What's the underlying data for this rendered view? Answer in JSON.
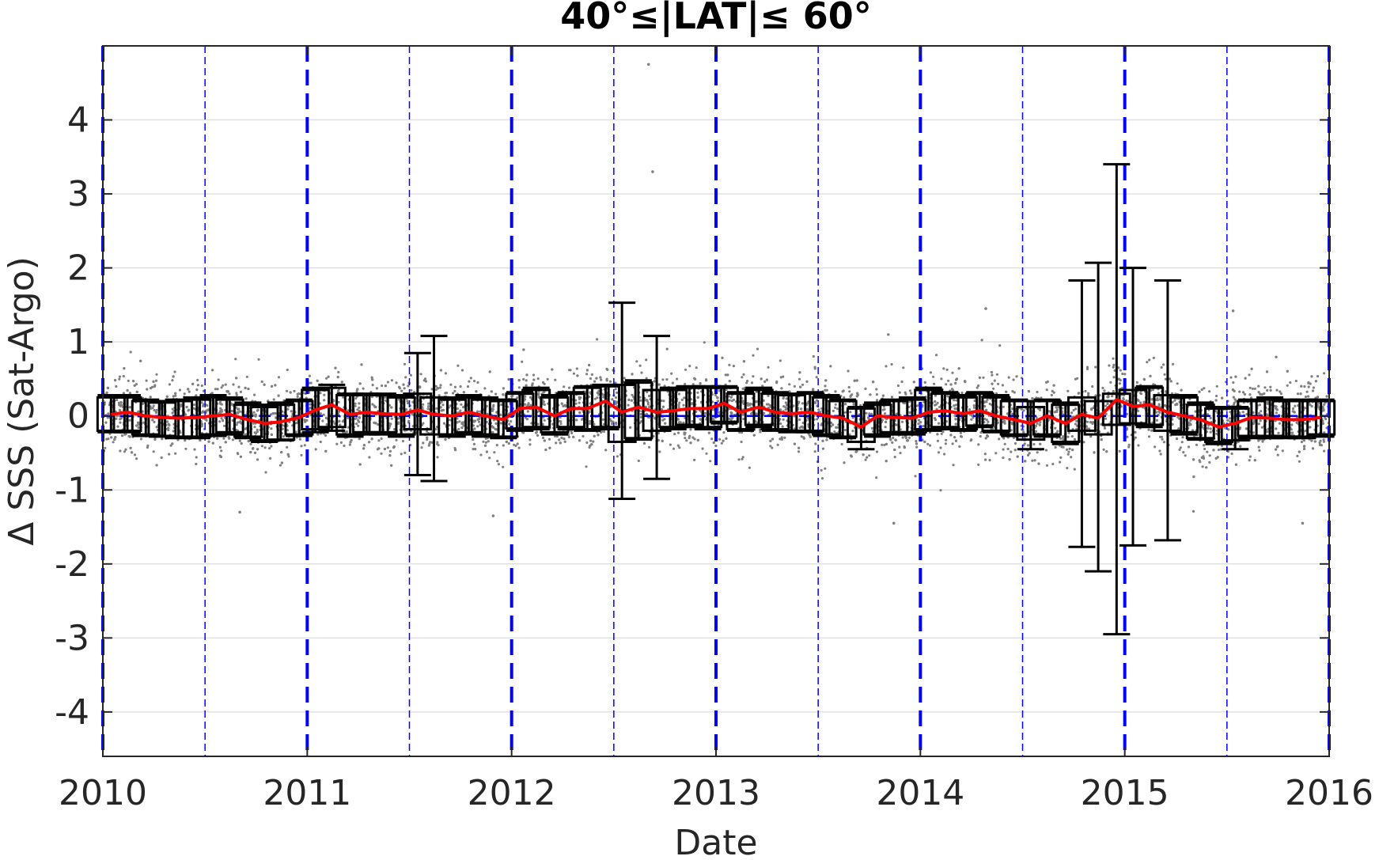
{
  "chart_data": {
    "type": "box",
    "title": "40°≤|LAT|≤ 60°",
    "xlabel": "Date",
    "ylabel": "Δ SSS (Sat-Argo)",
    "xlim": [
      2010.0,
      2016.0
    ],
    "ylim": [
      -4.6,
      5.0
    ],
    "x_ticks": [
      2010,
      2011,
      2012,
      2013,
      2014,
      2015,
      2016
    ],
    "x_tick_labels": [
      "2010",
      "2011",
      "2012",
      "2013",
      "2014",
      "2015",
      "2016"
    ],
    "y_ticks": [
      -4,
      -3,
      -2,
      -1,
      0,
      1,
      2,
      3,
      4
    ],
    "y_tick_labels": [
      "-4",
      "-3",
      "-2",
      "-1",
      "0",
      "1",
      "2",
      "3",
      "4"
    ],
    "grid": "horizontal",
    "year_lines": [
      2010,
      2011,
      2012,
      2013,
      2014,
      2015,
      2016
    ],
    "half_year_lines": [
      2010.5,
      2011.5,
      2012.5,
      2013.5,
      2014.5,
      2015.5
    ],
    "scatter": {
      "description": "individual satellite-minus-Argo differences",
      "color": "#808080",
      "spread_sd": 0.25,
      "outliers": [
        {
          "x": 2012.67,
          "y": 4.75
        },
        {
          "x": 2012.69,
          "y": 3.3
        },
        {
          "x": 2014.32,
          "y": 1.45
        },
        {
          "x": 2015.53,
          "y": 1.42
        },
        {
          "x": 2010.67,
          "y": -1.3
        },
        {
          "x": 2011.91,
          "y": -1.35
        },
        {
          "x": 2013.87,
          "y": -1.45
        },
        {
          "x": 2015.87,
          "y": -1.45
        }
      ]
    },
    "boxes": {
      "x": [
        2010.04,
        2010.12,
        2010.21,
        2010.29,
        2010.37,
        2010.46,
        2010.54,
        2010.62,
        2010.71,
        2010.79,
        2010.87,
        2010.96,
        2011.04,
        2011.12,
        2011.21,
        2011.29,
        2011.37,
        2011.46,
        2011.54,
        2011.62,
        2011.71,
        2011.79,
        2011.87,
        2011.96,
        2012.04,
        2012.12,
        2012.21,
        2012.29,
        2012.37,
        2012.46,
        2012.54,
        2012.62,
        2012.71,
        2012.79,
        2012.87,
        2012.96,
        2013.04,
        2013.12,
        2013.21,
        2013.29,
        2013.37,
        2013.46,
        2013.54,
        2013.62,
        2013.71,
        2013.79,
        2013.87,
        2013.96,
        2014.04,
        2014.12,
        2014.21,
        2014.29,
        2014.37,
        2014.46,
        2014.54,
        2014.62,
        2014.71,
        2014.79,
        2014.87,
        2014.96,
        2015.04,
        2015.12,
        2015.21,
        2015.29,
        2015.37,
        2015.46,
        2015.54,
        2015.62,
        2015.71,
        2015.79,
        2015.87,
        2015.96
      ],
      "median": [
        0.02,
        0.05,
        0.0,
        -0.02,
        -0.03,
        -0.02,
        0.0,
        0.02,
        -0.05,
        -0.1,
        -0.08,
        -0.02,
        0.08,
        0.15,
        0.02,
        0.05,
        0.03,
        0.02,
        0.08,
        0.02,
        0.0,
        0.05,
        0.0,
        -0.05,
        0.1,
        0.12,
        0.0,
        0.1,
        0.1,
        0.2,
        0.05,
        0.12,
        0.05,
        0.07,
        0.1,
        0.1,
        0.17,
        0.05,
        0.12,
        0.05,
        0.03,
        0.05,
        0.0,
        -0.03,
        -0.15,
        0.0,
        -0.02,
        -0.03,
        0.05,
        0.07,
        0.03,
        0.07,
        0.0,
        -0.05,
        -0.1,
        0.0,
        -0.1,
        0.02,
        -0.03,
        0.22,
        0.13,
        0.15,
        0.05,
        0.0,
        -0.05,
        -0.15,
        -0.1,
        -0.02,
        -0.03,
        -0.05,
        -0.05,
        -0.02
      ],
      "q1": [
        -0.2,
        -0.2,
        -0.25,
        -0.27,
        -0.28,
        -0.28,
        -0.25,
        -0.22,
        -0.28,
        -0.33,
        -0.32,
        -0.25,
        -0.18,
        -0.15,
        -0.25,
        -0.22,
        -0.22,
        -0.25,
        -0.18,
        -0.25,
        -0.25,
        -0.22,
        -0.25,
        -0.28,
        -0.17,
        -0.15,
        -0.22,
        -0.15,
        -0.18,
        -0.15,
        -0.35,
        -0.3,
        -0.2,
        -0.15,
        -0.12,
        -0.15,
        -0.08,
        -0.18,
        -0.12,
        -0.18,
        -0.2,
        -0.2,
        -0.25,
        -0.28,
        -0.35,
        -0.25,
        -0.22,
        -0.22,
        -0.18,
        -0.15,
        -0.18,
        -0.13,
        -0.2,
        -0.25,
        -0.32,
        -0.25,
        -0.35,
        -0.2,
        -0.25,
        -0.12,
        -0.1,
        -0.12,
        -0.2,
        -0.22,
        -0.3,
        -0.35,
        -0.33,
        -0.27,
        -0.27,
        -0.28,
        -0.28,
        -0.25
      ],
      "q3": [
        0.25,
        0.25,
        0.2,
        0.18,
        0.2,
        0.22,
        0.25,
        0.22,
        0.15,
        0.12,
        0.15,
        0.2,
        0.35,
        0.38,
        0.28,
        0.28,
        0.28,
        0.25,
        0.3,
        0.25,
        0.22,
        0.25,
        0.22,
        0.2,
        0.3,
        0.35,
        0.25,
        0.3,
        0.38,
        0.4,
        0.42,
        0.45,
        0.35,
        0.35,
        0.38,
        0.38,
        0.38,
        0.3,
        0.35,
        0.3,
        0.28,
        0.3,
        0.25,
        0.2,
        0.1,
        0.15,
        0.2,
        0.22,
        0.35,
        0.3,
        0.25,
        0.3,
        0.25,
        0.2,
        0.12,
        0.2,
        0.15,
        0.25,
        0.2,
        0.3,
        0.35,
        0.38,
        0.28,
        0.25,
        0.15,
        0.1,
        0.1,
        0.2,
        0.22,
        0.2,
        0.2,
        0.2
      ],
      "whisker_low": [
        -0.22,
        -0.22,
        -0.27,
        -0.28,
        -0.3,
        -0.3,
        -0.27,
        -0.25,
        -0.3,
        -0.35,
        -0.33,
        -0.27,
        -0.22,
        -0.2,
        -0.28,
        -0.25,
        -0.25,
        -0.28,
        -0.8,
        -0.88,
        -0.28,
        -0.25,
        -0.28,
        -0.3,
        -0.2,
        -0.18,
        -0.25,
        -0.18,
        -0.2,
        -0.18,
        -1.12,
        -0.32,
        -0.85,
        -0.18,
        -0.15,
        -0.18,
        -0.1,
        -0.2,
        -0.15,
        -0.2,
        -0.22,
        -0.22,
        -0.27,
        -0.3,
        -0.45,
        -0.28,
        -0.25,
        -0.25,
        -0.2,
        -0.18,
        -0.2,
        -0.15,
        -0.22,
        -0.27,
        -0.45,
        -0.28,
        -0.38,
        -1.77,
        -2.1,
        -2.95,
        -1.75,
        -0.15,
        -1.68,
        -0.25,
        -0.32,
        -0.38,
        -0.45,
        -0.3,
        -0.3,
        -0.3,
        -0.3,
        -0.28
      ],
      "whisker_high": [
        0.28,
        0.28,
        0.22,
        0.2,
        0.22,
        0.25,
        0.28,
        0.25,
        0.18,
        0.15,
        0.18,
        0.22,
        0.38,
        0.42,
        0.3,
        0.3,
        0.3,
        0.28,
        0.85,
        1.08,
        0.25,
        0.28,
        0.25,
        0.22,
        0.32,
        0.38,
        0.28,
        0.32,
        0.4,
        0.42,
        1.53,
        0.48,
        1.08,
        0.38,
        0.4,
        0.4,
        0.4,
        0.32,
        0.38,
        0.32,
        0.3,
        0.32,
        0.28,
        0.22,
        0.12,
        0.18,
        0.22,
        0.25,
        0.38,
        0.32,
        0.28,
        0.32,
        0.28,
        0.22,
        0.2,
        0.22,
        0.18,
        1.83,
        2.07,
        3.4,
        2.0,
        0.4,
        1.83,
        0.28,
        0.18,
        0.12,
        0.12,
        0.22,
        0.25,
        0.22,
        0.22,
        0.22
      ]
    },
    "median_line_color": "#ff0000",
    "box_color": "#000000",
    "zero_line": {
      "y": 0,
      "color": "#0000ff",
      "style": "dashed"
    }
  }
}
